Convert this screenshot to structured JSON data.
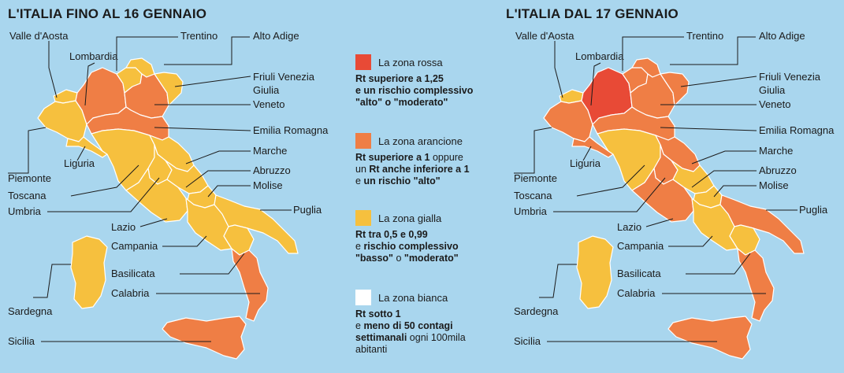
{
  "titles": {
    "left": "L'ITALIA FINO AL 16 GENNAIO",
    "right": "L'ITALIA DAL 17 GENNAIO"
  },
  "colors": {
    "rossa": "#e84a36",
    "arancione": "#ef7e45",
    "gialla": "#f6c03e",
    "bianca": "#ffffff",
    "background": "#a9d6ee",
    "outline": "#ffffff"
  },
  "labels": {
    "valle_aosta": "Valle d'Aosta",
    "lombardia": "Lombardia",
    "trentino": "Trentino",
    "alto_adige": "Alto Adige",
    "friuli": "Friuli Venezia",
    "giulia": "Giulia",
    "veneto": "Veneto",
    "emilia": "Emilia Romagna",
    "marche": "Marche",
    "abruzzo": "Abruzzo",
    "molise": "Molise",
    "piemonte": "Piemonte",
    "liguria": "Liguria",
    "toscana": "Toscana",
    "umbria": "Umbria",
    "puglia": "Puglia",
    "lazio": "Lazio",
    "campania": "Campania",
    "basilicata": "Basilicata",
    "calabria": "Calabria",
    "sardegna": "Sardegna",
    "sicilia": "Sicilia"
  },
  "maps": {
    "left": {
      "valle_aosta": "gialla",
      "piemonte": "gialla",
      "liguria": "gialla",
      "lombardia": "arancione",
      "trentino": "gialla",
      "alto_adige": "gialla",
      "veneto": "arancione",
      "friuli": "gialla",
      "emilia": "arancione",
      "toscana": "gialla",
      "umbria": "gialla",
      "marche": "gialla",
      "lazio": "gialla",
      "abruzzo": "gialla",
      "molise": "gialla",
      "campania": "gialla",
      "puglia": "gialla",
      "basilicata": "gialla",
      "calabria": "arancione",
      "sicilia": "arancione",
      "sardegna": "gialla"
    },
    "right": {
      "valle_aosta": "gialla",
      "piemonte": "arancione",
      "liguria": "arancione",
      "lombardia": "rossa",
      "trentino": "arancione",
      "alto_adige": "arancione",
      "veneto": "arancione",
      "friuli": "arancione",
      "emilia": "arancione",
      "toscana": "gialla",
      "umbria": "arancione",
      "marche": "arancione",
      "lazio": "arancione",
      "abruzzo": "gialla",
      "molise": "gialla",
      "campania": "gialla",
      "puglia": "arancione",
      "basilicata": "gialla",
      "calabria": "arancione",
      "sicilia": "arancione",
      "sardegna": "gialla"
    }
  },
  "legend": {
    "rossa": {
      "title": "La zona rossa",
      "line1": "Rt superiore a 1,25",
      "line2": "e un rischio complessivo",
      "line3": "\"alto\" o \"moderato\""
    },
    "arancione": {
      "title": "La zona arancione",
      "line1_bold": "Rt superiore a 1",
      "line1_rest": " oppure",
      "line2_pre": "un ",
      "line2_bold": "Rt anche inferiore a 1",
      "line3_pre": "e ",
      "line3_bold": "un rischio \"alto\""
    },
    "gialla": {
      "title": "La zona gialla",
      "line1": "Rt tra 0,5 e 0,99",
      "line2_pre": "e ",
      "line2_bold": "rischio complessivo",
      "line3_bold1": "\"basso\"",
      "line3_mid": " o ",
      "line3_bold2": "\"moderato\""
    },
    "bianca": {
      "title": "La zona bianca",
      "line1": "Rt sotto 1",
      "line2_pre": "e ",
      "line2_bold": "meno di 50 contagi",
      "line3_bold": "settimanali",
      "line3_rest": " ogni 100mila",
      "line4": "abitanti"
    }
  }
}
